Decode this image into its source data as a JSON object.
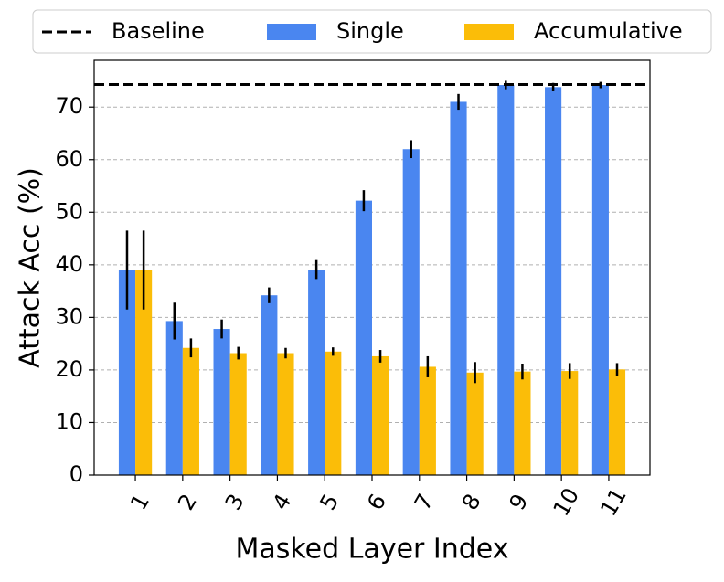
{
  "chart_data": {
    "type": "bar",
    "x_label": "Masked Layer Index",
    "y_label": "Attack Acc (%)",
    "categories": [
      "1",
      "2",
      "3",
      "4",
      "5",
      "6",
      "7",
      "8",
      "9",
      "10",
      "11"
    ],
    "series": [
      {
        "name": "Single",
        "color": "#4a86f0",
        "values": [
          39,
          29.3,
          27.8,
          34.2,
          39.1,
          52.2,
          62,
          71,
          74.2,
          73.8,
          74.2
        ],
        "errors": [
          7.5,
          3.5,
          1.8,
          1.5,
          1.8,
          2,
          1.7,
          1.5,
          0.8,
          0.8,
          0.6
        ]
      },
      {
        "name": "Accumulative",
        "color": "#fbbd08",
        "values": [
          39,
          24.2,
          23.2,
          23.2,
          23.5,
          22.6,
          20.6,
          19.5,
          19.7,
          19.8,
          20.1
        ],
        "errors": [
          7.5,
          1.8,
          1.2,
          1,
          0.8,
          1.2,
          2,
          2,
          1.5,
          1.5,
          1.2
        ]
      }
    ],
    "baseline": {
      "name": "Baseline",
      "value": 74.3,
      "color": "#000000"
    },
    "ylim": [
      0,
      78.9
    ],
    "yticks": [
      0,
      10,
      20,
      30,
      40,
      50,
      60,
      70
    ],
    "grid": true,
    "legend": "top"
  }
}
